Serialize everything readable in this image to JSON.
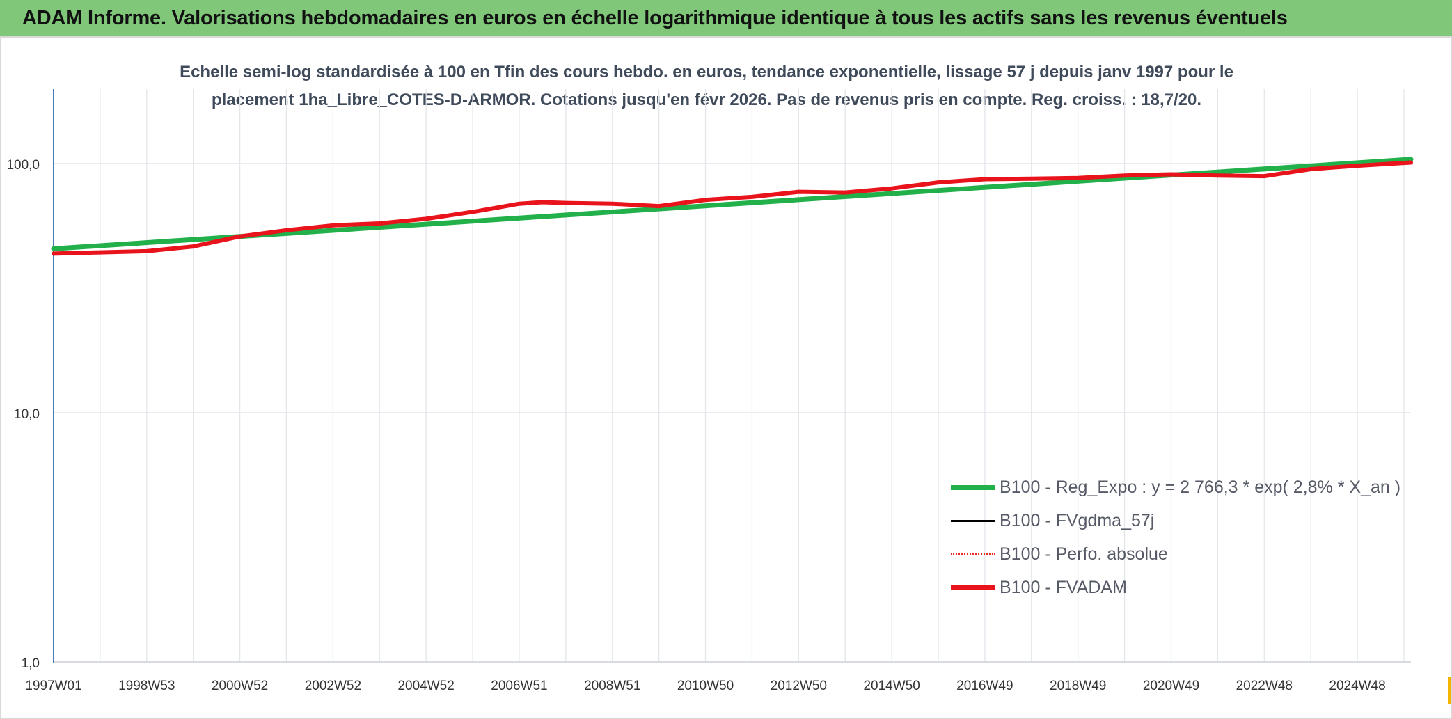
{
  "header": {
    "title": "ADAM Informe. Valorisations hebdomadaires en euros en échelle logarithmique identique à tous les actifs sans les revenus éventuels"
  },
  "chart_data": {
    "type": "line",
    "title_line1": "Echelle semi-log standardisée à 100 en Tfin des cours hebdo. en euros, tendance exponentielle, lissage 57 j depuis janv 1997 pour le",
    "title_line2": "placement 1ha_Libre_COTES-D-ARMOR. Cotations jusqu'en févr 2026. Pas de revenus pris en compte. Reg. croiss. : 18,7/20.",
    "y_scale": "log",
    "ylim": [
      1,
      180
    ],
    "y_ticks": [
      {
        "value": 1,
        "label": "1,0"
      },
      {
        "value": 10,
        "label": "10,0"
      },
      {
        "value": 100,
        "label": "100,0"
      }
    ],
    "x_tick_labels": [
      "1997W01",
      "1998W53",
      "2000W52",
      "2002W52",
      "2004W52",
      "2006W51",
      "2008W51",
      "2010W50",
      "2012W50",
      "2014W50",
      "2016W49",
      "2018W49",
      "2020W49",
      "2022W48",
      "2024W48"
    ],
    "x_tick_years": [
      1997.0,
      1999.0,
      2001.0,
      2003.0,
      2005.0,
      2007.0,
      2009.0,
      2011.0,
      2013.0,
      2015.0,
      2017.0,
      2019.0,
      2021.0,
      2023.0,
      2025.0
    ],
    "xlim": [
      1997.0,
      2026.15
    ],
    "grid": true,
    "legend_position": "bottom-right",
    "series": [
      {
        "name": "B100 - Reg_Expo : y = 2 766,3 * exp( 2,8% *  X_an )",
        "color": "#22b04b",
        "style": "solid",
        "x": [
          1997.0,
          2026.15
        ],
        "y": [
          45.5,
          104.0
        ]
      },
      {
        "name": "B100 - FVgdma_57j",
        "color": "#000000",
        "style": "solid",
        "x": [],
        "y": []
      },
      {
        "name": "B100 - Perfo. absolue",
        "color": "#e8251e",
        "style": "dotted",
        "x": [],
        "y": []
      },
      {
        "name": "B100 - FVADAM",
        "color": "#e8131b",
        "style": "solid",
        "x": [
          1997.0,
          1998.0,
          1999.0,
          2000.0,
          2001.0,
          2002.0,
          2003.0,
          2004.0,
          2005.0,
          2006.0,
          2007.0,
          2007.5,
          2008.0,
          2009.0,
          2010.0,
          2011.0,
          2012.0,
          2013.0,
          2014.0,
          2015.0,
          2016.0,
          2017.0,
          2018.0,
          2019.0,
          2020.0,
          2021.0,
          2022.0,
          2023.0,
          2024.0,
          2025.0,
          2026.15
        ],
        "y": [
          43.5,
          44.0,
          44.5,
          46.5,
          51.0,
          54.0,
          56.5,
          57.5,
          60.0,
          64.0,
          69.0,
          70.0,
          69.5,
          69.0,
          67.5,
          71.5,
          73.5,
          77.0,
          76.5,
          79.5,
          84.0,
          86.5,
          87.0,
          87.5,
          89.5,
          90.5,
          89.5,
          89.0,
          95.0,
          98.0,
          101.0
        ]
      }
    ]
  }
}
